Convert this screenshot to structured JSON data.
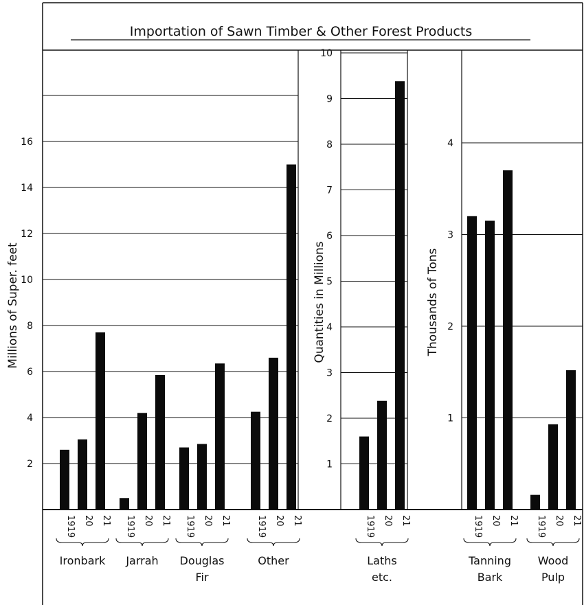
{
  "title": "Importation of Sawn Timber & Other Forest Products",
  "chart_data": [
    {
      "type": "bar",
      "ylabel": "Millions of Super. feet",
      "ylim": [
        0,
        20
      ],
      "yticks": [
        "2",
        "4",
        "6",
        "8",
        "10",
        "12",
        "14",
        "16"
      ],
      "groups": [
        {
          "name": "Ironbark",
          "categories": [
            "1919",
            "20",
            "21"
          ],
          "values": [
            2.6,
            3.05,
            7.7
          ]
        },
        {
          "name": "Jarrah",
          "categories": [
            "1919",
            "20",
            "21"
          ],
          "values": [
            0.5,
            4.2,
            5.85
          ]
        },
        {
          "name": "Douglas Fir",
          "categories": [
            "1919",
            "20",
            "21"
          ],
          "values": [
            2.7,
            2.85,
            6.35
          ]
        },
        {
          "name": "Other",
          "categories": [
            "1919",
            "20",
            "21"
          ],
          "values": [
            4.25,
            6.6,
            15.0
          ]
        }
      ]
    },
    {
      "type": "bar",
      "ylabel": "Quantities in Millions",
      "ylim": [
        0,
        10
      ],
      "yticks": [
        "1",
        "2",
        "3",
        "4",
        "5",
        "6",
        "7",
        "8",
        "9",
        "10"
      ],
      "groups": [
        {
          "name": "Laths etc.",
          "categories": [
            "1919",
            "20",
            "21"
          ],
          "values": [
            1.6,
            2.38,
            9.38
          ]
        }
      ]
    },
    {
      "type": "bar",
      "ylabel": "Thousands of Tons",
      "ylim": [
        0,
        5
      ],
      "yticks": [
        "1",
        "2",
        "3",
        "4"
      ],
      "groups": [
        {
          "name": "Tanning Bark",
          "categories": [
            "1919",
            "20",
            "21"
          ],
          "values": [
            3.2,
            3.15,
            3.7
          ]
        },
        {
          "name": "Wood Pulp",
          "categories": [
            "1919",
            "20",
            "21"
          ],
          "values": [
            0.16,
            0.93,
            1.52
          ]
        }
      ]
    }
  ]
}
